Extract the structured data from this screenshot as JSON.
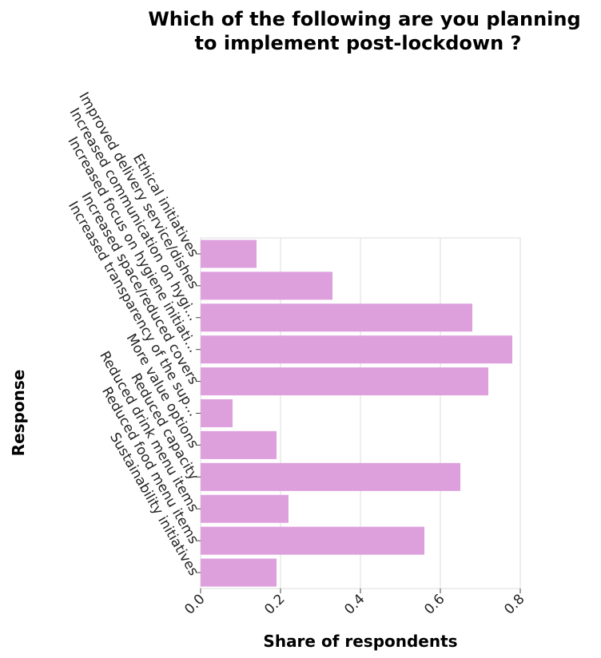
{
  "chart_data": {
    "type": "bar",
    "orientation": "horizontal",
    "title": "Which of the following are you planning to implement post-lockdown ?",
    "xlabel": "Share of respondents",
    "ylabel": "Response",
    "xlim": [
      0,
      0.8
    ],
    "x_ticks": [
      "0.0",
      "0.2",
      "0.4",
      "0.6",
      "0.8"
    ],
    "categories": [
      "Ethical initiatives",
      "Improved delivery service/dishes",
      "Increased communication on hygi...",
      "Increased focus on hygiene initiati...",
      "Increased space/reduced covers",
      "Increased transparency of the sup...",
      "More value options",
      "Reduced capacity",
      "Reduced drink menu items",
      "Reduced food menu items",
      "Sustainability initiatives"
    ],
    "values": [
      0.14,
      0.33,
      0.68,
      0.78,
      0.72,
      0.08,
      0.19,
      0.65,
      0.22,
      0.56,
      0.19
    ],
    "bar_color": "#dda0dd",
    "grid": true,
    "legend": "none"
  }
}
